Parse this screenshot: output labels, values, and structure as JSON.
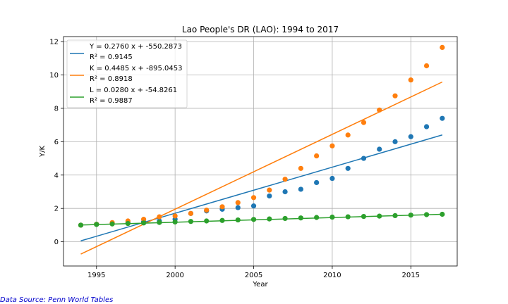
{
  "chart_data": {
    "type": "scatter",
    "title": "Lao People's DR (LAO): 1994 to 2017",
    "xlabel": "Year",
    "ylabel": "Y/K",
    "xlim": [
      1992.9,
      2017.95
    ],
    "ylim": [
      -1.45,
      12.3
    ],
    "xticks": [
      1995,
      2000,
      2005,
      2010,
      2015
    ],
    "yticks": [
      0,
      2,
      4,
      6,
      8,
      10,
      12
    ],
    "grid": true,
    "legend_position": "top-left",
    "x": [
      1994,
      1995,
      1996,
      1997,
      1998,
      1999,
      2000,
      2001,
      2002,
      2003,
      2004,
      2005,
      2006,
      2007,
      2008,
      2009,
      2010,
      2011,
      2012,
      2013,
      2014,
      2015,
      2016,
      2017
    ],
    "series": [
      {
        "id": "Y",
        "color": "#1f77b4",
        "fit_label": "Y = 0.2760 x + -550.2873",
        "r2_label": "R² = 0.9145",
        "slope": 0.276,
        "intercept": -550.2873,
        "values": [
          1.0,
          1.05,
          1.1,
          1.15,
          1.2,
          1.25,
          1.35,
          1.7,
          1.85,
          1.95,
          2.05,
          2.15,
          2.75,
          3.0,
          3.15,
          3.55,
          3.8,
          4.4,
          5.0,
          5.55,
          6.0,
          6.3,
          6.9,
          7.4
        ]
      },
      {
        "id": "K",
        "color": "#ff7f0e",
        "fit_label": "K = 0.4485 x + -895.0453",
        "r2_label": "R² = 0.8918",
        "slope": 0.4485,
        "intercept": -895.0453,
        "values": [
          1.0,
          1.05,
          1.15,
          1.25,
          1.35,
          1.5,
          1.55,
          1.7,
          1.9,
          2.1,
          2.35,
          2.65,
          3.1,
          3.75,
          4.4,
          5.15,
          5.75,
          6.4,
          7.15,
          7.9,
          8.75,
          9.7,
          10.55,
          11.65
        ]
      },
      {
        "id": "L",
        "color": "#2ca02c",
        "fit_label": "L = 0.0280 x + -54.8261",
        "r2_label": "R² = 0.9887",
        "slope": 0.028,
        "intercept": -54.8261,
        "values": [
          1.0,
          1.04,
          1.07,
          1.1,
          1.13,
          1.16,
          1.19,
          1.22,
          1.25,
          1.28,
          1.31,
          1.34,
          1.37,
          1.4,
          1.43,
          1.46,
          1.48,
          1.5,
          1.52,
          1.54,
          1.57,
          1.6,
          1.63,
          1.65
        ]
      }
    ]
  },
  "source_note": "Data Source: Penn World Tables"
}
